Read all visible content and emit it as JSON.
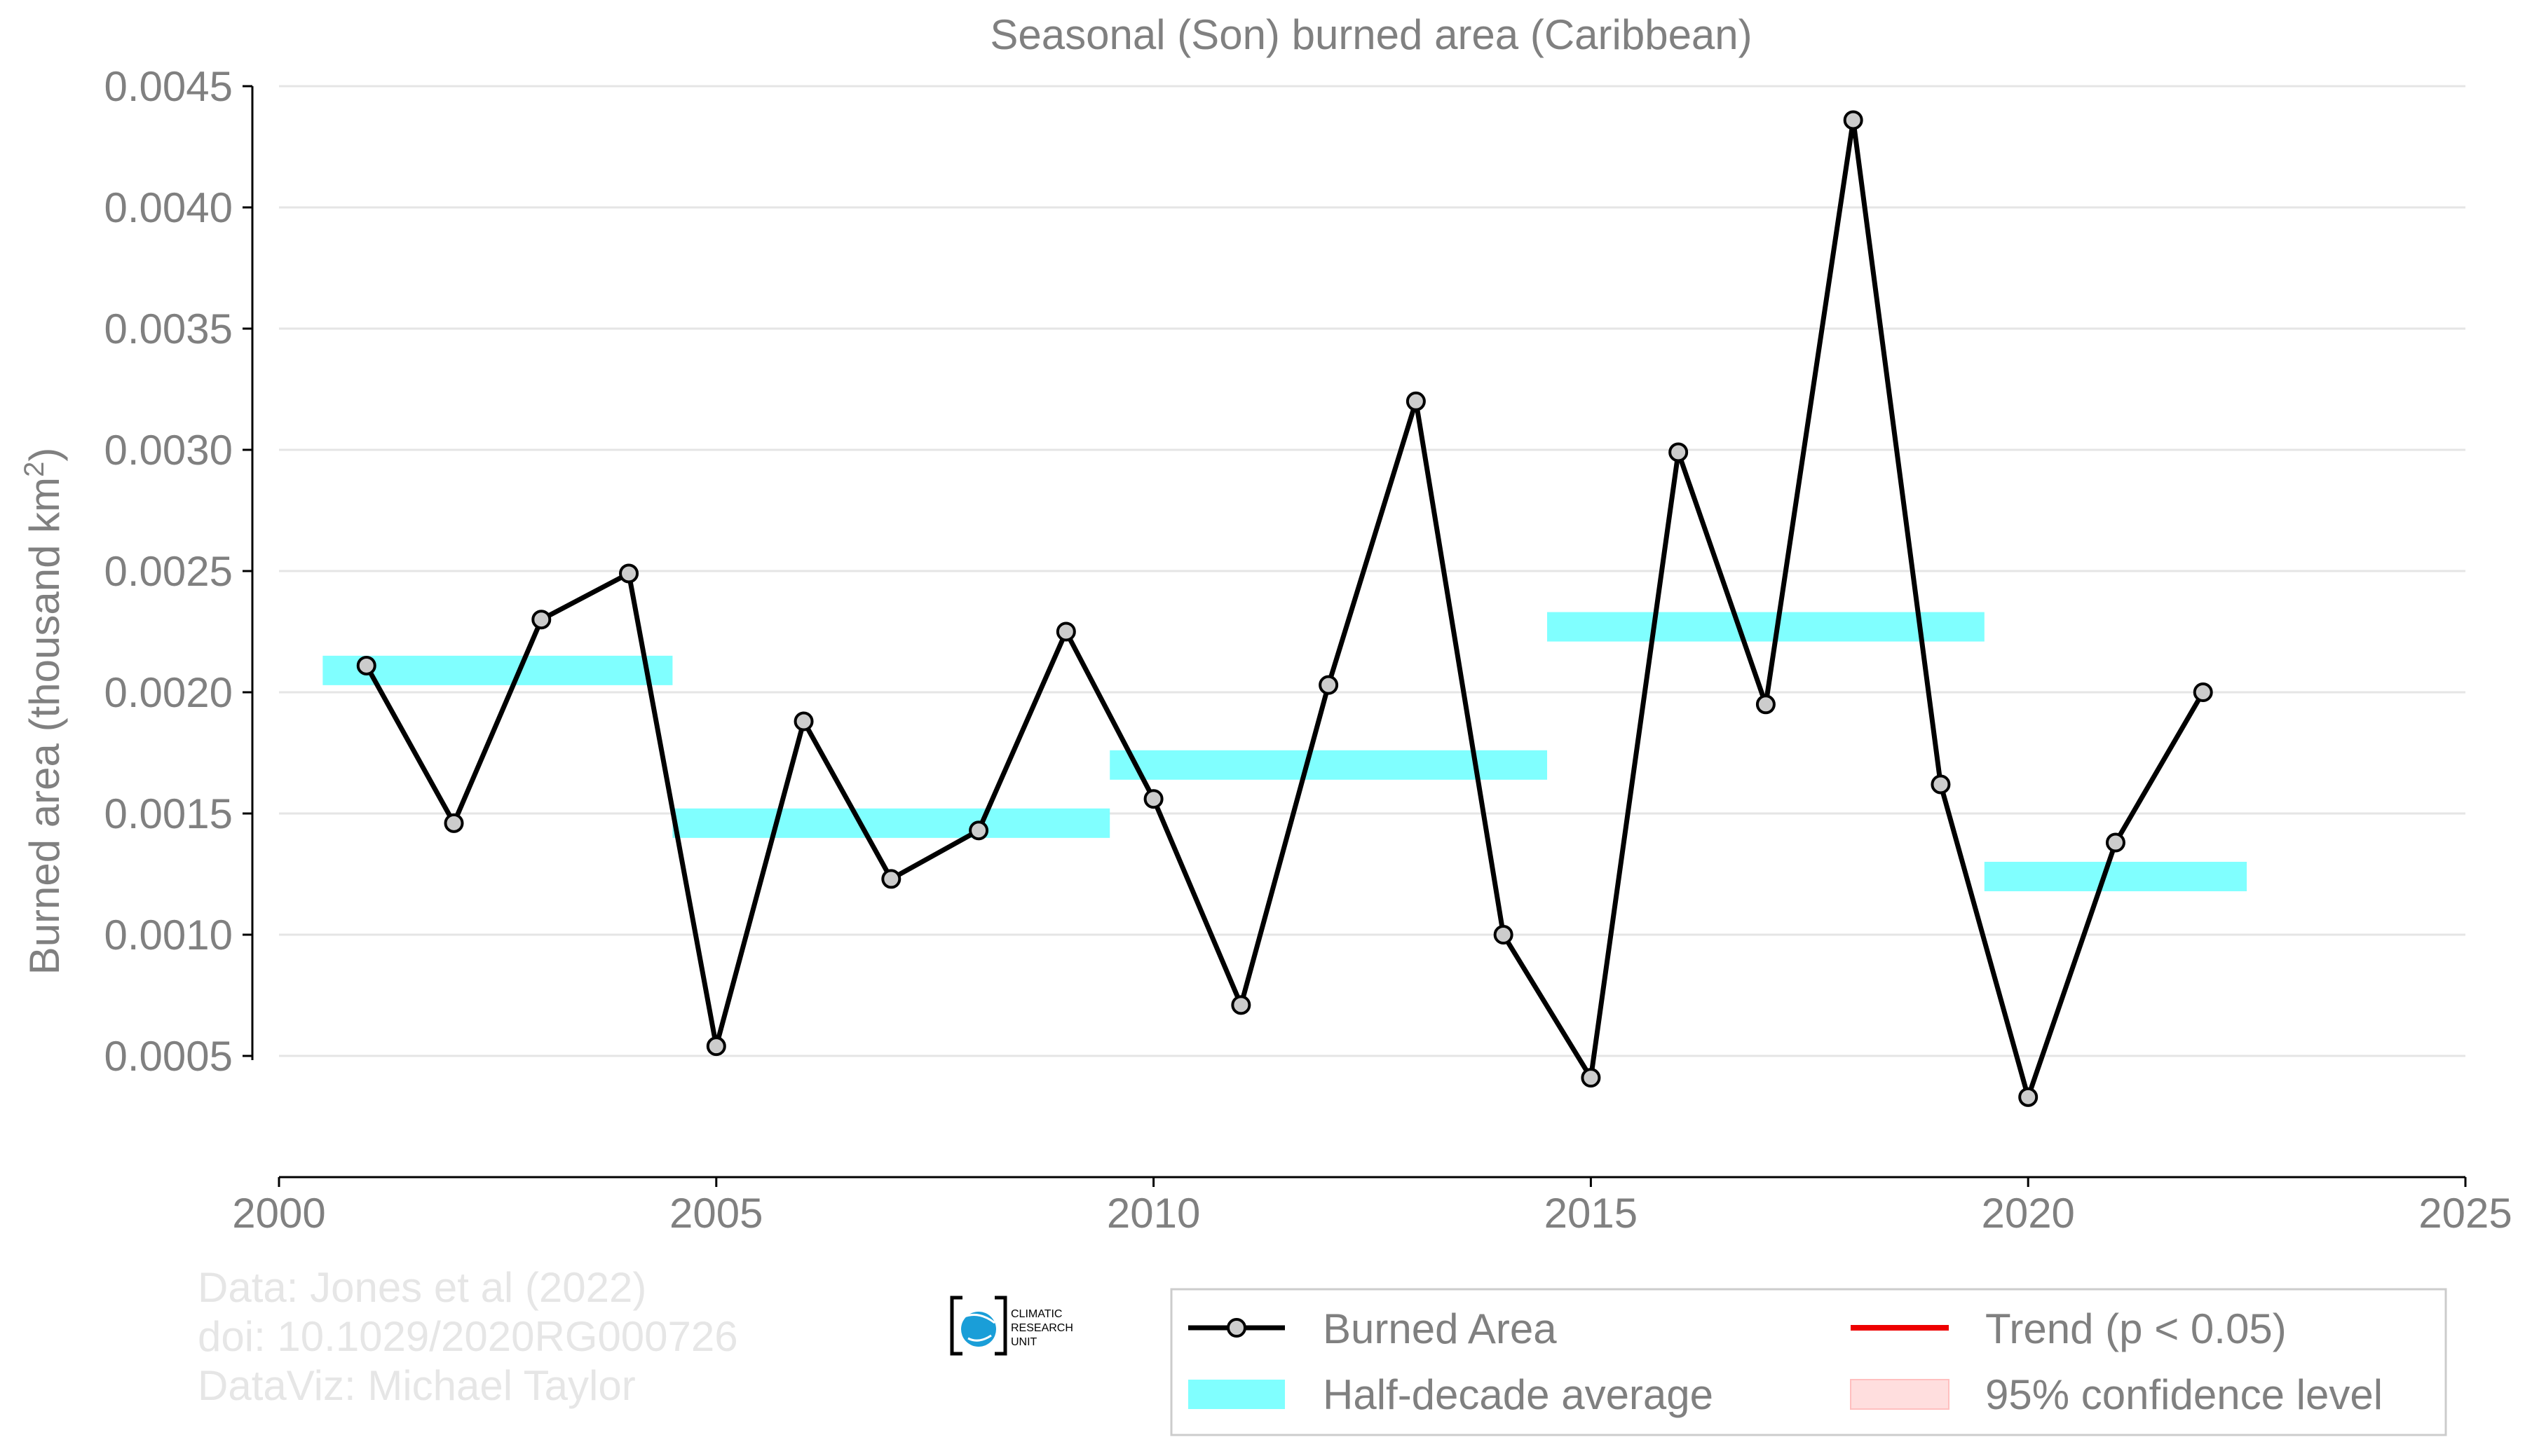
{
  "chart_data": {
    "type": "line",
    "title": "Seasonal (Son) burned area (Caribbean)",
    "xlabel": "",
    "ylabel": "Burned area (thousand km",
    "ylabel_superscript": "2",
    "ylabel_close": ")",
    "xlim": [
      2000,
      2025
    ],
    "ylim": [
      0.0,
      0.0045
    ],
    "xticks": [
      2000,
      2005,
      2010,
      2015,
      2020,
      2025
    ],
    "xtick_labels": [
      "2000",
      "2005",
      "2010",
      "2015",
      "2020",
      "2025"
    ],
    "yticks": [
      0.0005,
      0.001,
      0.0015,
      0.002,
      0.0025,
      0.003,
      0.0035,
      0.004,
      0.0045
    ],
    "ytick_labels": [
      "0.0005",
      "0.0010",
      "0.0015",
      "0.0020",
      "0.0025",
      "0.0030",
      "0.0035",
      "0.0040",
      "0.0045"
    ],
    "grid": "horizontal",
    "legend_position": "bottom-right",
    "series": [
      {
        "name": "Burned Area",
        "kind": "line-markers",
        "color": "#000000",
        "marker_fill": "#cccccc",
        "x": [
          2001,
          2002,
          2003,
          2004,
          2005,
          2006,
          2007,
          2008,
          2009,
          2010,
          2011,
          2012,
          2013,
          2014,
          2015,
          2016,
          2017,
          2018,
          2019,
          2020,
          2021,
          2022
        ],
        "y": [
          0.00211,
          0.00146,
          0.0023,
          0.00249,
          0.00054,
          0.00188,
          0.00123,
          0.00143,
          0.00225,
          0.00156,
          0.00071,
          0.00203,
          0.0032,
          0.001,
          0.00041,
          0.00299,
          0.00195,
          0.00436,
          0.00162,
          0.00033,
          0.00138,
          0.002
        ]
      },
      {
        "name": "Half-decade average",
        "kind": "band",
        "color": "#80ffff",
        "segments": [
          {
            "x_start": 2000.5,
            "x_end": 2004.5,
            "y": 0.00209
          },
          {
            "x_start": 2004.5,
            "x_end": 2009.5,
            "y": 0.00146
          },
          {
            "x_start": 2009.5,
            "x_end": 2014.5,
            "y": 0.0017
          },
          {
            "x_start": 2014.5,
            "x_end": 2019.5,
            "y": 0.00227
          },
          {
            "x_start": 2019.5,
            "x_end": 2022.5,
            "y": 0.00124
          }
        ]
      }
    ],
    "legend": [
      {
        "label": "Burned Area",
        "symbol": "line-marker",
        "color": "#000000"
      },
      {
        "label": "Trend (p < 0.05)",
        "symbol": "line",
        "color": "#ee0000"
      },
      {
        "label": "Half-decade average",
        "symbol": "patch",
        "color": "#80ffff"
      },
      {
        "label": "95% confidence level",
        "symbol": "patch",
        "color": "#ffdede"
      }
    ]
  },
  "credits": {
    "line1": "Data: Jones et al (2022)",
    "line2": "doi: 10.1029/2020RG000726",
    "line3": "DataViz: Michael Taylor"
  },
  "logo": {
    "line1": "CLIMATIC",
    "line2": "RESEARCH",
    "line3": "UNIT"
  }
}
